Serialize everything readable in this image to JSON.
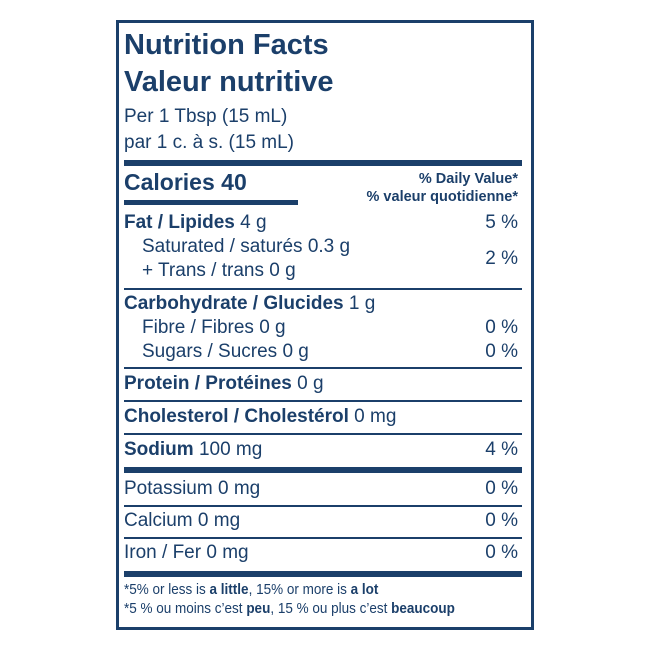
{
  "title_en": "Nutrition Facts",
  "title_fr": "Valeur nutritive",
  "serving_en": "Per 1 Tbsp (15 mL)",
  "serving_fr": "par 1 c. à s. (15 mL)",
  "calories": "Calories 40",
  "dv_en": "% Daily Value*",
  "dv_fr": "% valeur quotidienne*",
  "rows": [
    {
      "label": "Fat / Lipides",
      "amount": "4 g",
      "dv": "5 %"
    },
    {
      "label": "Saturated / saturés 0.3 g"
    },
    {
      "label": "+ Trans / trans 0 g",
      "dv": "2 %"
    },
    {
      "label": "Carbohydrate / Glucides",
      "amount": "1 g"
    },
    {
      "label": "Fibre / Fibres 0 g",
      "dv": "0 %"
    },
    {
      "label": "Sugars / Sucres 0 g",
      "dv": "0 %"
    },
    {
      "label": "Protein / Protéines",
      "amount": "0 g"
    },
    {
      "label": "Cholesterol / Cholestérol",
      "amount": "0 mg"
    },
    {
      "label": "Sodium",
      "amount": "100 mg",
      "dv": "4 %"
    },
    {
      "label": "Potassium 0 mg",
      "dv": "0 %"
    },
    {
      "label": "Calcium 0 mg",
      "dv": "0 %"
    },
    {
      "label": "Iron / Fer 0 mg",
      "dv": "0 %"
    }
  ],
  "footnote_en": {
    "a": "*5% or less is ",
    "b": "a little",
    ",c": "",
    "c": ", 15% or more is ",
    "d": "a lot"
  },
  "footnote_fr": {
    "a": "*5 % ou moins c’est ",
    "b": "peu",
    "c": ", 15 % ou plus c’est ",
    "d": "beaucoup"
  },
  "colors": {
    "ink": "#1b3f6a"
  }
}
